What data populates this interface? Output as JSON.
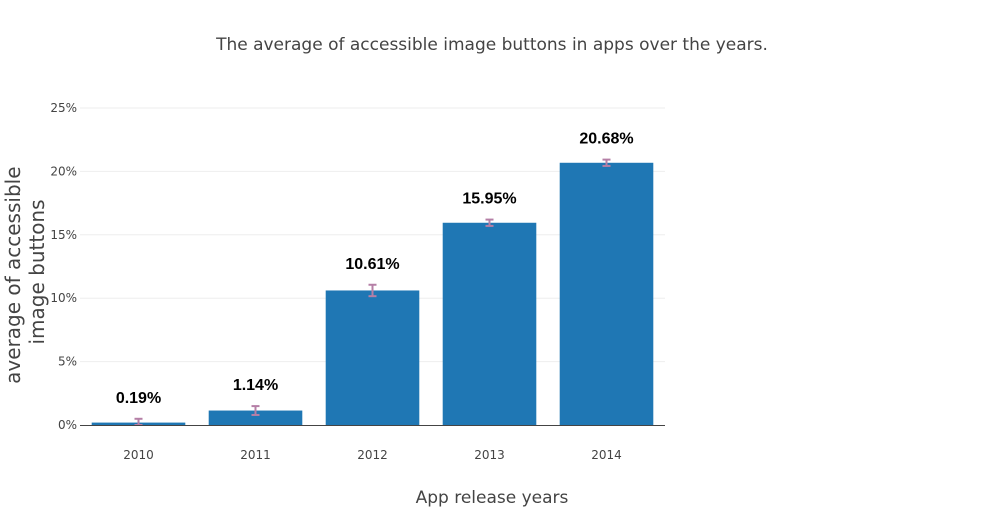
{
  "colors": {
    "bar": "#1f77b4",
    "error_bar": "#b57fa6",
    "grid": "#eeeeee",
    "axis_line": "#444444"
  },
  "chart_data": {
    "type": "bar",
    "title": "The average of accessible image buttons in apps over the years.",
    "xlabel": "App release years",
    "ylabel": "average of accessible image buttons",
    "ylabel_lines": [
      "average of accessible",
      "image buttons"
    ],
    "categories": [
      "2010",
      "2011",
      "2012",
      "2013",
      "2014"
    ],
    "values": [
      0.19,
      1.14,
      10.61,
      15.95,
      20.68
    ],
    "value_labels": [
      "0.19%",
      "1.14%",
      "10.61%",
      "15.95%",
      "20.68%"
    ],
    "error": [
      0.3,
      0.35,
      0.45,
      0.25,
      0.25
    ],
    "ylim": [
      0,
      25
    ],
    "yticks": [
      0,
      5,
      10,
      15,
      20,
      25
    ],
    "ytick_labels": [
      "0%",
      "5%",
      "10%",
      "15%",
      "20%",
      "25%"
    ],
    "grid": true,
    "legend": false
  }
}
